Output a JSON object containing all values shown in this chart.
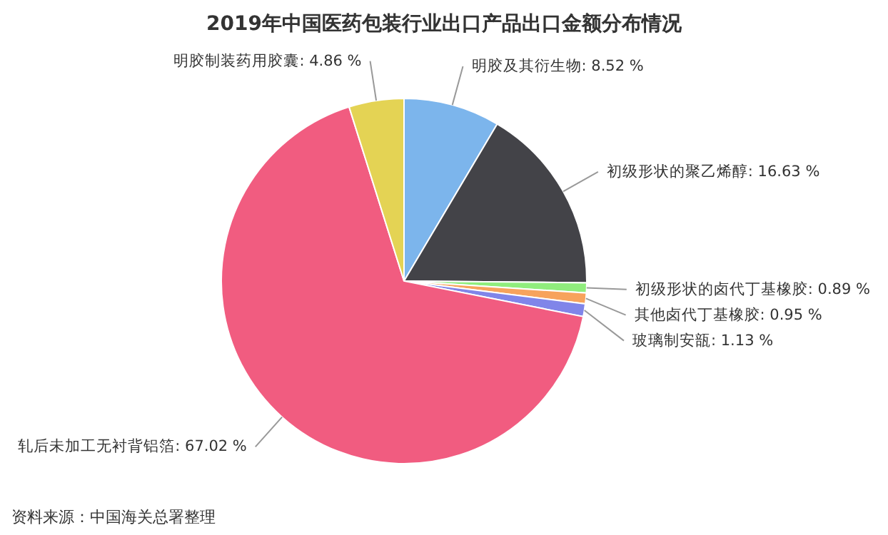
{
  "chart_data": {
    "type": "pie",
    "title": "2019年中国医药包装行业出口产品出口金额分布情况",
    "categories": [
      "明胶及其衍生物",
      "初级形状的聚乙烯醇",
      "初级形状的卤代丁基橡胶",
      "其他卤代丁基橡胶",
      "玻璃制安瓿",
      "轧后未加工无衬背铝箔",
      "明胶制装药用胶囊"
    ],
    "values": [
      8.52,
      16.63,
      0.89,
      0.95,
      1.13,
      67.02,
      4.86
    ],
    "colors": [
      "#7cb5ec",
      "#434348",
      "#90ed7d",
      "#f7a35c",
      "#8085e9",
      "#f15c80",
      "#e4d354"
    ],
    "value_labels": [
      "8.52 %",
      "16.63 %",
      "0.89 %",
      "0.95 %",
      "1.13 %",
      "67.02 %",
      "4.86 %"
    ],
    "annotations": [
      "资料来源：中国海关总署整理"
    ]
  }
}
